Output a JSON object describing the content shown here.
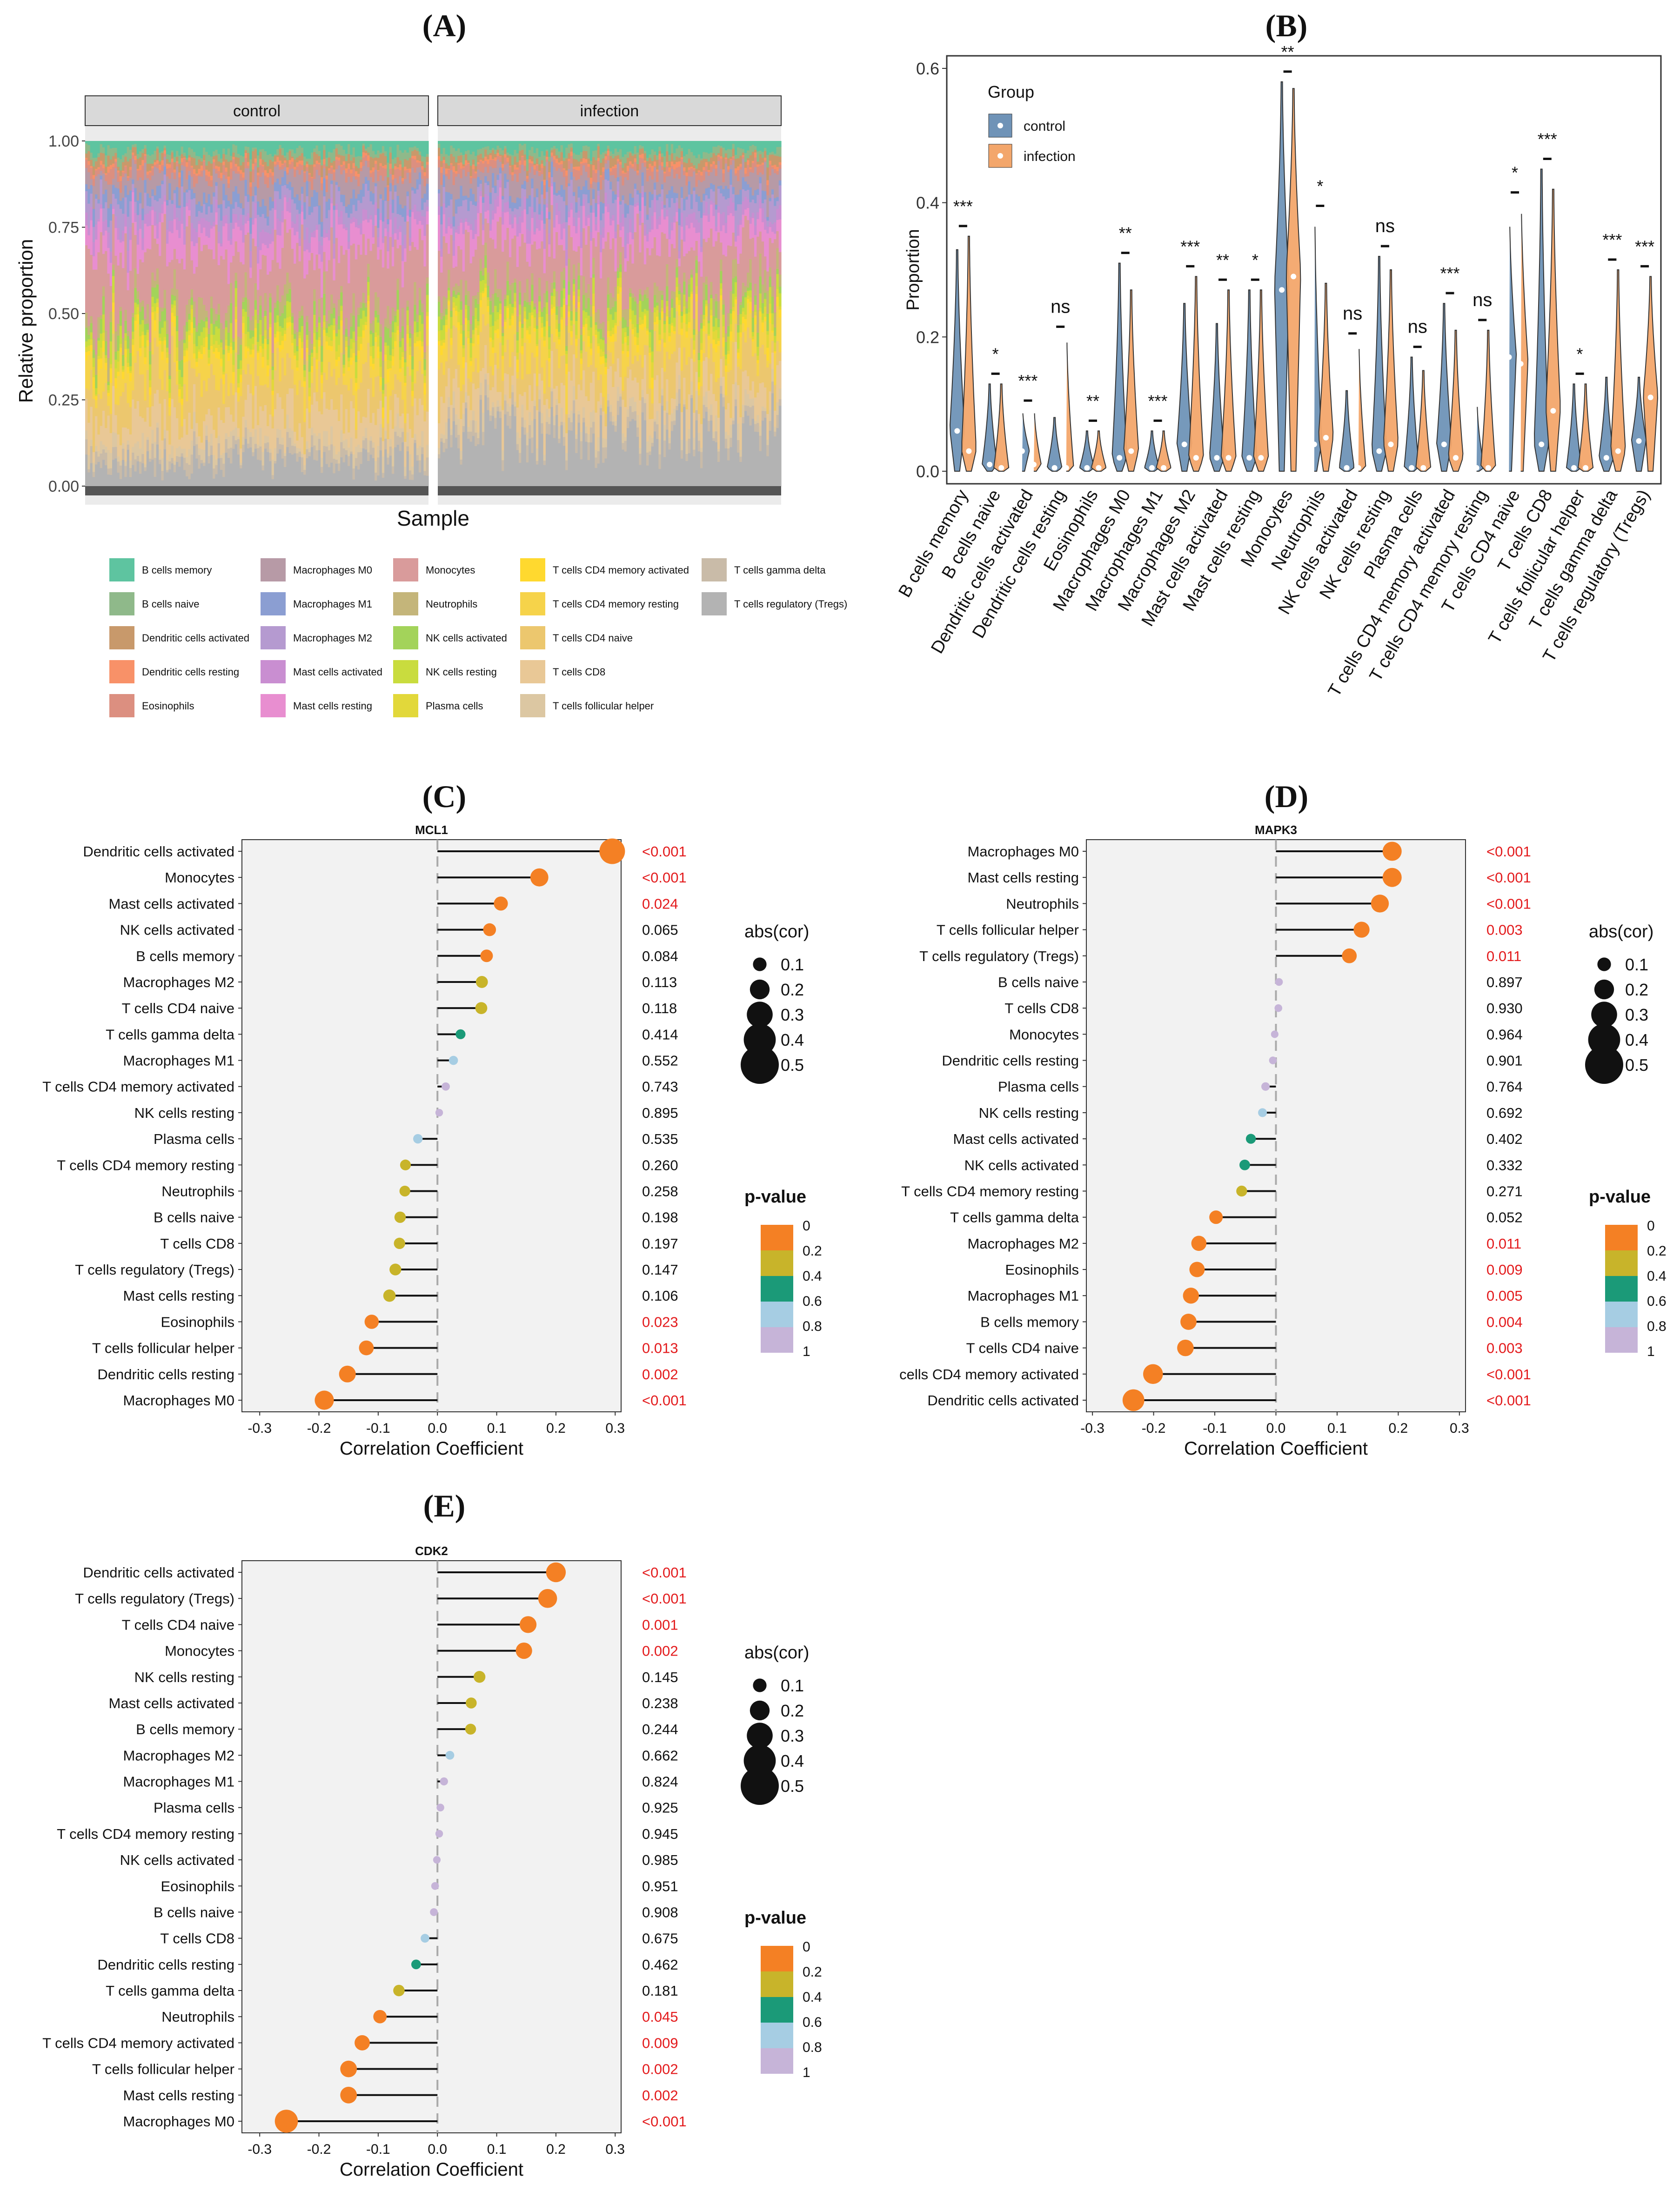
{
  "panel_labels": {
    "A": "(A)",
    "B": "(B)",
    "C": "(C)",
    "D": "(D)",
    "E": "(E)"
  },
  "colors": {
    "sig": "#e31a1c",
    "bar_p0": "#f48024",
    "bar_p02": "#c8b42a",
    "bar_p04": "#1b9a78",
    "bar_p06": "#a6cde3",
    "bar_p08": "#c6b4d8",
    "control": "#6f93b7",
    "infection": "#f3a66b"
  },
  "chart_data": [
    {
      "id": "A",
      "type": "stacked_bar",
      "facets": [
        "control",
        "infection"
      ],
      "ylabel": "Relative proportion",
      "xlabel": "Sample",
      "y_ticks": [
        "0.00",
        "0.25",
        "0.50",
        "0.75",
        "1.00"
      ],
      "ylim": [
        0,
        1
      ],
      "legend": [
        {
          "label": "B cells memory",
          "color": "#5ec4a0",
          "mean": 0.03
        },
        {
          "label": "B cells naive",
          "color": "#8fb98a",
          "mean": 0.02
        },
        {
          "label": "Dendritic cells activated",
          "color": "#c8996b",
          "mean": 0.02
        },
        {
          "label": "Dendritic cells resting",
          "color": "#f89168",
          "mean": 0.01
        },
        {
          "label": "Eosinophils",
          "color": "#dc8f80",
          "mean": 0.02
        },
        {
          "label": "Macrophages M0",
          "color": "#b79aa6",
          "mean": 0.05
        },
        {
          "label": "Macrophages M1",
          "color": "#8b9ed2",
          "mean": 0.03
        },
        {
          "label": "Macrophages M2",
          "color": "#b59ad0",
          "mean": 0.05
        },
        {
          "label": "Mast cells activated",
          "color": "#c98ed1",
          "mean": 0.03
        },
        {
          "label": "Mast cells resting",
          "color": "#e88ed0",
          "mean": 0.06
        },
        {
          "label": "Monocytes",
          "color": "#d99b9b",
          "mean": 0.17
        },
        {
          "label": "Neutrophils",
          "color": "#c4b57a",
          "mean": 0.04
        },
        {
          "label": "NK cells activated",
          "color": "#a3d35a",
          "mean": 0.03
        },
        {
          "label": "NK cells resting",
          "color": "#c9dc3e",
          "mean": 0.03
        },
        {
          "label": "Plasma cells",
          "color": "#e2d83a",
          "mean": 0.02
        },
        {
          "label": "T cells CD4 memory activated",
          "color": "#ffd92f",
          "mean": 0.02
        },
        {
          "label": "T cells CD4 memory resting",
          "color": "#f6d34a",
          "mean": 0.07
        },
        {
          "label": "T cells CD4 naive",
          "color": "#ecc76e",
          "mean": 0.1
        },
        {
          "label": "T cells CD8",
          "color": "#e9c896",
          "mean": 0.08
        },
        {
          "label": "T cells follicular helper",
          "color": "#dcc7a2",
          "mean": 0.03
        },
        {
          "label": "T cells gamma delta",
          "color": "#c9bba8",
          "mean": 0.03
        },
        {
          "label": "T cells regulatory (Tregs)",
          "color": "#b3b3b3",
          "mean": 0.07
        }
      ]
    },
    {
      "id": "B",
      "type": "violin",
      "ylabel": "Proportion",
      "ylim": [
        0,
        0.6
      ],
      "y_ticks": [
        "0.0",
        "0.2",
        "0.4",
        "0.6"
      ],
      "legend_title": "Group",
      "groups": [
        "control",
        "infection"
      ],
      "categories": [
        "B cells memory",
        "B cells naive",
        "Dendritic cells activated",
        "Dendritic cells resting",
        "Eosinophils",
        "Macrophages M0",
        "Macrophages M1",
        "Macrophages M2",
        "Mast cells activated",
        "Mast cells resting",
        "Monocytes",
        "Neutrophils",
        "NK cells activated",
        "NK cells resting",
        "Plasma cells",
        "T cells CD4 memory activated",
        "T cells CD4 memory resting",
        "T cells CD4 naive",
        "T cells CD8",
        "T cells follicular helper",
        "T cells gamma delta",
        "T cells regulatory (Tregs)"
      ],
      "significance": [
        "***",
        "*",
        "***",
        "ns",
        "**",
        "**",
        "***",
        "***",
        "**",
        "*",
        "**",
        "*",
        "ns",
        "ns",
        "ns",
        "***",
        "ns",
        "*",
        "***",
        "*",
        "***",
        "***"
      ],
      "series": [
        {
          "name": "control",
          "max": [
            0.33,
            0.13,
            0.09,
            0.08,
            0.06,
            0.31,
            0.06,
            0.25,
            0.22,
            0.27,
            0.58,
            0.38,
            0.12,
            0.32,
            0.17,
            0.25,
            0.1,
            0.38,
            0.45,
            0.13,
            0.14,
            0.14
          ],
          "median": [
            0.06,
            0.01,
            0.03,
            0.005,
            0.005,
            0.02,
            0.005,
            0.04,
            0.02,
            0.02,
            0.27,
            0.04,
            0.005,
            0.03,
            0.005,
            0.04,
            0.005,
            0.17,
            0.04,
            0.005,
            0.02,
            0.045
          ]
        },
        {
          "name": "infection",
          "max": [
            0.35,
            0.13,
            0.09,
            0.2,
            0.06,
            0.27,
            0.06,
            0.29,
            0.27,
            0.27,
            0.57,
            0.28,
            0.19,
            0.3,
            0.15,
            0.21,
            0.21,
            0.4,
            0.42,
            0.13,
            0.3,
            0.29
          ],
          "median": [
            0.03,
            0.005,
            0.01,
            0.005,
            0.005,
            0.03,
            0.005,
            0.02,
            0.02,
            0.02,
            0.29,
            0.05,
            0.005,
            0.04,
            0.005,
            0.02,
            0.005,
            0.16,
            0.09,
            0.005,
            0.03,
            0.11
          ]
        }
      ]
    },
    {
      "id": "C",
      "type": "lollipop",
      "title": "MCL1",
      "xlabel": "Correlation Coefficient",
      "xlim": [
        -0.33,
        0.31
      ],
      "x_ticks": [
        -0.3,
        -0.2,
        -0.1,
        0.0,
        0.1,
        0.2,
        0.3
      ],
      "x_tick_labels": [
        "-0.3",
        "-0.2",
        "-0.1",
        "0.0",
        "0.1",
        "0.2",
        "0.3"
      ],
      "categories": [
        "Dendritic cells activated",
        "Monocytes",
        "Mast cells activated",
        "NK cells activated",
        "B cells memory",
        "Macrophages M2",
        "T cells CD4 naive",
        "T cells gamma delta",
        "Macrophages M1",
        "T cells CD4 memory activated",
        "NK cells resting",
        "Plasma cells",
        "T cells CD4 memory resting",
        "Neutrophils",
        "B cells naive",
        "T cells CD8",
        "T cells regulatory (Tregs)",
        "Mast cells resting",
        "Eosinophils",
        "T cells follicular helper",
        "Dendritic cells resting",
        "Macrophages M0"
      ],
      "values": [
        0.295,
        0.172,
        0.107,
        0.088,
        0.083,
        0.075,
        0.074,
        0.039,
        0.027,
        0.014,
        0.003,
        -0.033,
        -0.054,
        -0.055,
        -0.063,
        -0.064,
        -0.071,
        -0.081,
        -0.111,
        -0.12,
        -0.152,
        -0.191
      ],
      "p_labels": [
        "<0.001",
        "<0.001",
        "0.024",
        "0.065",
        "0.084",
        "0.113",
        "0.118",
        "0.414",
        "0.552",
        "0.743",
        "0.895",
        "0.535",
        "0.260",
        "0.258",
        "0.198",
        "0.197",
        "0.147",
        "0.106",
        "0.023",
        "0.013",
        "0.002",
        "<0.001"
      ],
      "p_values": [
        0.0005,
        0.0005,
        0.024,
        0.065,
        0.084,
        0.113,
        0.118,
        0.414,
        0.552,
        0.743,
        0.895,
        0.535,
        0.26,
        0.258,
        0.198,
        0.197,
        0.147,
        0.106,
        0.023,
        0.013,
        0.002,
        0.0005
      ],
      "size_legend_title": "abs(cor)",
      "size_legend": [
        "0.1",
        "0.2",
        "0.3",
        "0.4",
        "0.5"
      ],
      "color_legend_title": "p-value",
      "color_legend": [
        "0",
        "0.2",
        "0.4",
        "0.6",
        "0.8",
        "1"
      ]
    },
    {
      "id": "D",
      "type": "lollipop",
      "title": "MAPK3",
      "xlabel": "Correlation Coefficient",
      "xlim": [
        -0.31,
        0.31
      ],
      "x_ticks": [
        -0.3,
        -0.2,
        -0.1,
        0.0,
        0.1,
        0.2,
        0.3
      ],
      "x_tick_labels": [
        "-0.3",
        "-0.2",
        "-0.1",
        "0.0",
        "0.1",
        "0.2",
        "0.3"
      ],
      "categories": [
        "Macrophages M0",
        "Mast cells resting",
        "Neutrophils",
        "T cells follicular helper",
        "T cells regulatory (Tregs)",
        "B cells naive",
        "T cells CD8",
        "Monocytes",
        "Dendritic cells resting",
        "Plasma cells",
        "NK cells resting",
        "Mast cells activated",
        "NK cells activated",
        "T cells CD4 memory resting",
        "T cells gamma delta",
        "Macrophages M2",
        "Eosinophils",
        "Macrophages M1",
        "B cells memory",
        "T cells CD4 naive",
        "cells CD4 memory activated",
        "Dendritic cells activated"
      ],
      "values": [
        0.19,
        0.19,
        0.17,
        0.14,
        0.12,
        0.005,
        0.004,
        -0.002,
        -0.005,
        -0.017,
        -0.022,
        -0.041,
        -0.051,
        -0.056,
        -0.098,
        -0.126,
        -0.129,
        -0.139,
        -0.143,
        -0.148,
        -0.201,
        -0.233
      ],
      "p_labels": [
        "<0.001",
        "<0.001",
        "<0.001",
        "0.003",
        "0.011",
        "0.897",
        "0.930",
        "0.964",
        "0.901",
        "0.764",
        "0.692",
        "0.402",
        "0.332",
        "0.271",
        "0.052",
        "0.011",
        "0.009",
        "0.005",
        "0.004",
        "0.003",
        "<0.001",
        "<0.001"
      ],
      "p_values": [
        0.0005,
        0.0005,
        0.0005,
        0.003,
        0.011,
        0.897,
        0.93,
        0.964,
        0.901,
        0.764,
        0.692,
        0.402,
        0.332,
        0.271,
        0.052,
        0.011,
        0.009,
        0.005,
        0.004,
        0.003,
        0.0005,
        0.0005
      ],
      "size_legend_title": "abs(cor)",
      "size_legend": [
        "0.1",
        "0.2",
        "0.3",
        "0.4",
        "0.5"
      ],
      "color_legend_title": "p-value",
      "color_legend": [
        "0",
        "0.2",
        "0.4",
        "0.6",
        "0.8",
        "1"
      ]
    },
    {
      "id": "E",
      "type": "lollipop",
      "title": "CDK2",
      "xlabel": "Correlation Coefficient",
      "xlim": [
        -0.33,
        0.31
      ],
      "x_ticks": [
        -0.3,
        -0.2,
        -0.1,
        0.0,
        0.1,
        0.2,
        0.3
      ],
      "x_tick_labels": [
        "-0.3",
        "-0.2",
        "-0.1",
        "0.0",
        "0.1",
        "0.2",
        "0.3"
      ],
      "categories": [
        "Dendritic cells activated",
        "T cells regulatory (Tregs)",
        "T cells CD4 naive",
        "Monocytes",
        "NK cells resting",
        "Mast cells activated",
        "B cells memory",
        "Macrophages M2",
        "Macrophages M1",
        "Plasma cells",
        "T cells CD4 memory resting",
        "NK cells activated",
        "Eosinophils",
        "B cells naive",
        "T cells CD8",
        "Dendritic cells resting",
        "T cells gamma delta",
        "Neutrophils",
        "T cells CD4 memory activated",
        "T cells follicular helper",
        "Mast cells resting",
        "Macrophages M0"
      ],
      "values": [
        0.2,
        0.186,
        0.153,
        0.146,
        0.071,
        0.057,
        0.056,
        0.021,
        0.011,
        0.005,
        0.003,
        -0.001,
        -0.004,
        -0.006,
        -0.021,
        -0.036,
        -0.065,
        -0.097,
        -0.127,
        -0.15,
        -0.15,
        -0.255
      ],
      "p_labels": [
        "<0.001",
        "<0.001",
        "0.001",
        "0.002",
        "0.145",
        "0.238",
        "0.244",
        "0.662",
        "0.824",
        "0.925",
        "0.945",
        "0.985",
        "0.951",
        "0.908",
        "0.675",
        "0.462",
        "0.181",
        "0.045",
        "0.009",
        "0.002",
        "0.002",
        "<0.001"
      ],
      "p_values": [
        0.0005,
        0.0005,
        0.001,
        0.002,
        0.145,
        0.238,
        0.244,
        0.662,
        0.824,
        0.925,
        0.945,
        0.985,
        0.951,
        0.908,
        0.675,
        0.462,
        0.181,
        0.045,
        0.009,
        0.002,
        0.002,
        0.0005
      ],
      "size_legend_title": "abs(cor)",
      "size_legend": [
        "0.1",
        "0.2",
        "0.3",
        "0.4",
        "0.5"
      ],
      "color_legend_title": "p-value",
      "color_legend": [
        "0",
        "0.2",
        "0.4",
        "0.6",
        "0.8",
        "1"
      ]
    }
  ]
}
